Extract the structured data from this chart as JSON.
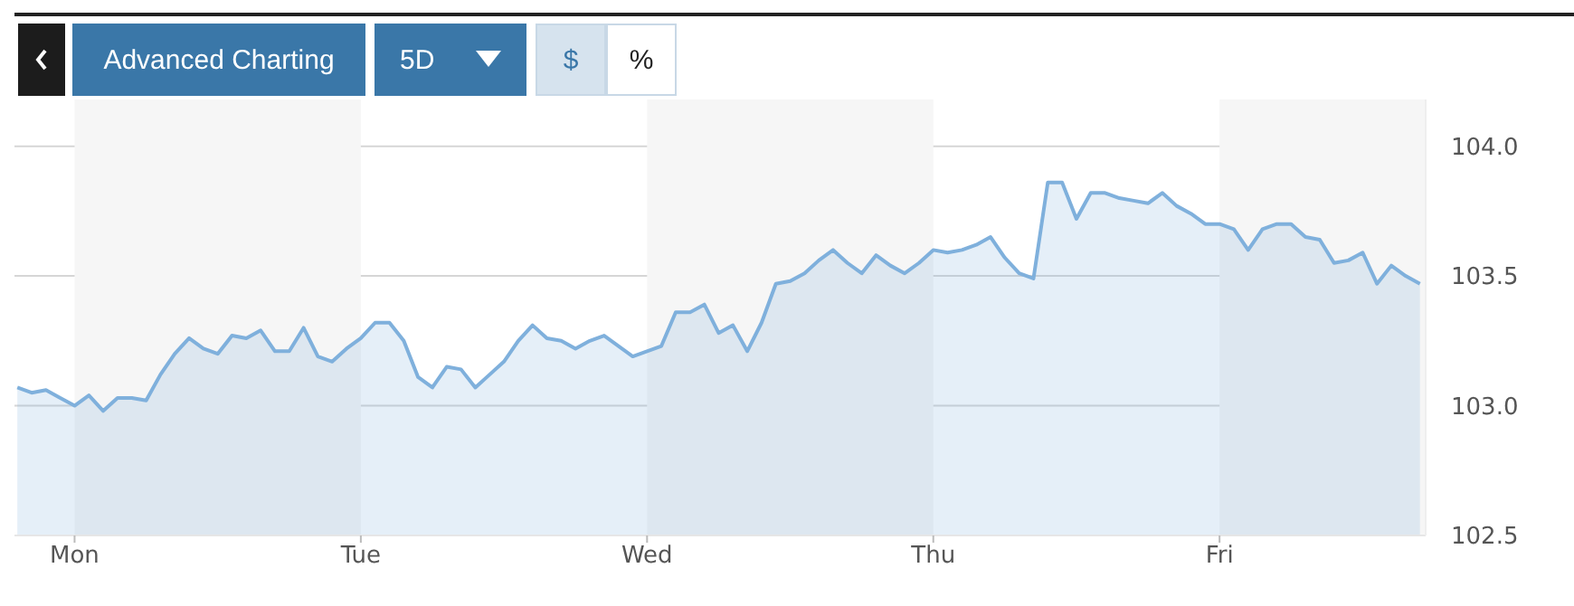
{
  "chart_data": {
    "type": "area",
    "color": "#7fb0dc",
    "categories": [
      null,
      null,
      null,
      null,
      "Mon",
      null,
      null,
      null,
      null,
      null,
      null,
      null,
      null,
      null,
      null,
      null,
      null,
      null,
      null,
      null,
      null,
      null,
      null,
      null,
      "Tue",
      null,
      null,
      null,
      null,
      null,
      null,
      null,
      null,
      null,
      null,
      null,
      null,
      null,
      null,
      null,
      null,
      null,
      null,
      null,
      "Wed",
      null,
      null,
      null,
      null,
      null,
      null,
      null,
      null,
      null,
      null,
      null,
      null,
      null,
      null,
      null,
      null,
      null,
      null,
      null,
      "Thu",
      null,
      null,
      null,
      null,
      null,
      null,
      null,
      null,
      null,
      null,
      null,
      null,
      null,
      null,
      null,
      null,
      null,
      null,
      null,
      "Fri",
      null,
      null,
      null,
      null,
      null,
      null,
      null,
      null,
      null,
      null,
      null,
      null,
      null,
      null
    ],
    "values": [
      103.07,
      103.05,
      103.06,
      103.03,
      103.0,
      103.04,
      102.98,
      103.03,
      103.03,
      103.02,
      103.12,
      103.2,
      103.26,
      103.22,
      103.2,
      103.27,
      103.26,
      103.29,
      103.21,
      103.21,
      103.3,
      103.19,
      103.17,
      103.22,
      103.26,
      103.32,
      103.32,
      103.25,
      103.11,
      103.07,
      103.15,
      103.14,
      103.07,
      103.12,
      103.17,
      103.25,
      103.31,
      103.26,
      103.25,
      103.22,
      103.25,
      103.27,
      103.23,
      103.19,
      103.21,
      103.23,
      103.36,
      103.36,
      103.39,
      103.28,
      103.31,
      103.21,
      103.32,
      103.47,
      103.48,
      103.51,
      103.56,
      103.6,
      103.55,
      103.51,
      103.58,
      103.54,
      103.51,
      103.55,
      103.6,
      103.59,
      103.6,
      103.62,
      103.65,
      103.57,
      103.51,
      103.49,
      103.86,
      103.86,
      103.72,
      103.82,
      103.82,
      103.8,
      103.79,
      103.78,
      103.82,
      103.77,
      103.74,
      103.7,
      103.7,
      103.68,
      103.6,
      103.68,
      103.7,
      103.7,
      103.65,
      103.64,
      103.55,
      103.56,
      103.59,
      103.47,
      103.54,
      103.5,
      103.47
    ],
    "ylim": [
      102.5,
      104.18
    ],
    "yticks": [
      {
        "value": 102.5,
        "label": "102.5"
      },
      {
        "value": 103,
        "label": "103.0"
      },
      {
        "value": 103.5,
        "label": "103.5"
      },
      {
        "value": 104,
        "label": "104.0"
      }
    ],
    "grid": "y",
    "annotations": [
      "Advanced Charting",
      "5D",
      "$",
      "%"
    ]
  }
}
